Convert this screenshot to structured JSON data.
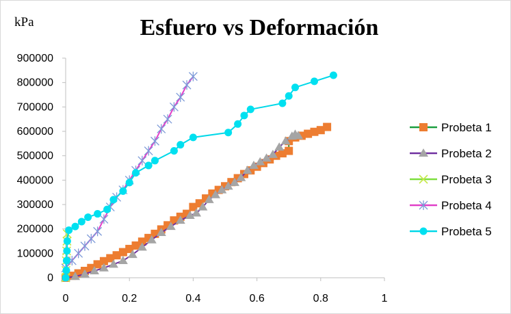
{
  "chart_data": {
    "type": "scatter",
    "title": "Esfuero vs Deformación",
    "ylabel": "kPa",
    "xlabel": "",
    "xlim": [
      0,
      1
    ],
    "ylim": [
      0,
      900000
    ],
    "x_ticks": [
      "0",
      "0.2",
      "0.4",
      "0.6",
      "0.8",
      "1"
    ],
    "y_ticks": [
      "0",
      "100000",
      "200000",
      "300000",
      "400000",
      "500000",
      "600000",
      "700000",
      "800000",
      "900000"
    ],
    "grid": false,
    "legend_position": "right",
    "series": [
      {
        "name": "Probeta 1",
        "line_color": "#1a9e3f",
        "marker_color": "#ed7d31",
        "marker": "square",
        "points": [
          [
            0,
            0
          ],
          [
            0.02,
            8000
          ],
          [
            0.04,
            18000
          ],
          [
            0.06,
            28000
          ],
          [
            0.08,
            40000
          ],
          [
            0.1,
            55000
          ],
          [
            0.12,
            68000
          ],
          [
            0.14,
            80000
          ],
          [
            0.16,
            92000
          ],
          [
            0.18,
            105000
          ],
          [
            0.2,
            118000
          ],
          [
            0.22,
            132000
          ],
          [
            0.24,
            148000
          ],
          [
            0.26,
            163000
          ],
          [
            0.28,
            180000
          ],
          [
            0.3,
            198000
          ],
          [
            0.32,
            215000
          ],
          [
            0.34,
            235000
          ],
          [
            0.36,
            250000
          ],
          [
            0.38,
            262000
          ],
          [
            0.4,
            290000
          ],
          [
            0.42,
            305000
          ],
          [
            0.44,
            325000
          ],
          [
            0.46,
            345000
          ],
          [
            0.48,
            360000
          ],
          [
            0.5,
            375000
          ],
          [
            0.52,
            392000
          ],
          [
            0.54,
            408000
          ],
          [
            0.56,
            425000
          ],
          [
            0.58,
            440000
          ],
          [
            0.6,
            455000
          ],
          [
            0.62,
            470000
          ],
          [
            0.64,
            485000
          ],
          [
            0.66,
            500000
          ],
          [
            0.68,
            510000
          ],
          [
            0.7,
            520000
          ],
          [
            0.7,
            560000
          ],
          [
            0.72,
            575000
          ],
          [
            0.74,
            582000
          ],
          [
            0.76,
            590000
          ],
          [
            0.78,
            598000
          ],
          [
            0.8,
            605000
          ],
          [
            0.82,
            618000
          ]
        ]
      },
      {
        "name": "Probeta 2",
        "line_color": "#7030a0",
        "marker_color": "#a5a5a5",
        "marker": "triangle",
        "points": [
          [
            0,
            0
          ],
          [
            0.03,
            5000
          ],
          [
            0.06,
            15000
          ],
          [
            0.09,
            28000
          ],
          [
            0.12,
            40000
          ],
          [
            0.15,
            55000
          ],
          [
            0.18,
            70000
          ],
          [
            0.21,
            95000
          ],
          [
            0.24,
            125000
          ],
          [
            0.27,
            155000
          ],
          [
            0.3,
            185000
          ],
          [
            0.33,
            210000
          ],
          [
            0.36,
            235000
          ],
          [
            0.39,
            255000
          ],
          [
            0.41,
            265000
          ],
          [
            0.43,
            290000
          ],
          [
            0.45,
            320000
          ],
          [
            0.47,
            340000
          ],
          [
            0.49,
            360000
          ],
          [
            0.51,
            375000
          ],
          [
            0.53,
            390000
          ],
          [
            0.55,
            410000
          ],
          [
            0.57,
            440000
          ],
          [
            0.59,
            460000
          ],
          [
            0.61,
            475000
          ],
          [
            0.63,
            490000
          ],
          [
            0.65,
            505000
          ],
          [
            0.67,
            535000
          ],
          [
            0.69,
            560000
          ],
          [
            0.71,
            580000
          ],
          [
            0.72,
            588000
          ],
          [
            0.73,
            582000
          ]
        ]
      },
      {
        "name": "Probeta 3",
        "line_color": "#7dde3d",
        "marker_color": "#c5e84a",
        "marker": "x",
        "points": [
          [
            0,
            0
          ],
          [
            0.001,
            30000
          ],
          [
            0.002,
            70000
          ],
          [
            0.003,
            110000
          ],
          [
            0.004,
            150000
          ],
          [
            0.005,
            180000
          ]
        ]
      },
      {
        "name": "Probeta 4",
        "line_color": "#e040c8",
        "marker_color": "#7c9ad8",
        "marker": "star",
        "points": [
          [
            0,
            40000
          ],
          [
            0.02,
            70000
          ],
          [
            0.04,
            100000
          ],
          [
            0.06,
            130000
          ],
          [
            0.08,
            160000
          ],
          [
            0.1,
            190000
          ],
          [
            0.12,
            240000
          ],
          [
            0.14,
            290000
          ],
          [
            0.16,
            330000
          ],
          [
            0.18,
            360000
          ],
          [
            0.2,
            400000
          ],
          [
            0.22,
            440000
          ],
          [
            0.24,
            480000
          ],
          [
            0.26,
            520000
          ],
          [
            0.28,
            560000
          ],
          [
            0.3,
            610000
          ],
          [
            0.32,
            650000
          ],
          [
            0.34,
            700000
          ],
          [
            0.36,
            740000
          ],
          [
            0.38,
            790000
          ],
          [
            0.4,
            825000
          ]
        ]
      },
      {
        "name": "Probeta 5",
        "line_color": "#00d8e8",
        "marker_color": "#00e0f0",
        "marker": "circle",
        "points": [
          [
            0,
            0
          ],
          [
            0.002,
            30000
          ],
          [
            0.003,
            70000
          ],
          [
            0.004,
            110000
          ],
          [
            0.005,
            150000
          ],
          [
            0.01,
            195000
          ],
          [
            0.03,
            210000
          ],
          [
            0.05,
            230000
          ],
          [
            0.07,
            248000
          ],
          [
            0.1,
            262000
          ],
          [
            0.13,
            280000
          ],
          [
            0.15,
            320000
          ],
          [
            0.18,
            355000
          ],
          [
            0.2,
            390000
          ],
          [
            0.22,
            430000
          ],
          [
            0.26,
            460000
          ],
          [
            0.28,
            480000
          ],
          [
            0.34,
            520000
          ],
          [
            0.36,
            545000
          ],
          [
            0.4,
            575000
          ],
          [
            0.51,
            595000
          ],
          [
            0.54,
            630000
          ],
          [
            0.56,
            665000
          ],
          [
            0.58,
            690000
          ],
          [
            0.68,
            715000
          ],
          [
            0.7,
            745000
          ],
          [
            0.72,
            780000
          ],
          [
            0.78,
            805000
          ],
          [
            0.84,
            830000
          ]
        ]
      }
    ]
  }
}
